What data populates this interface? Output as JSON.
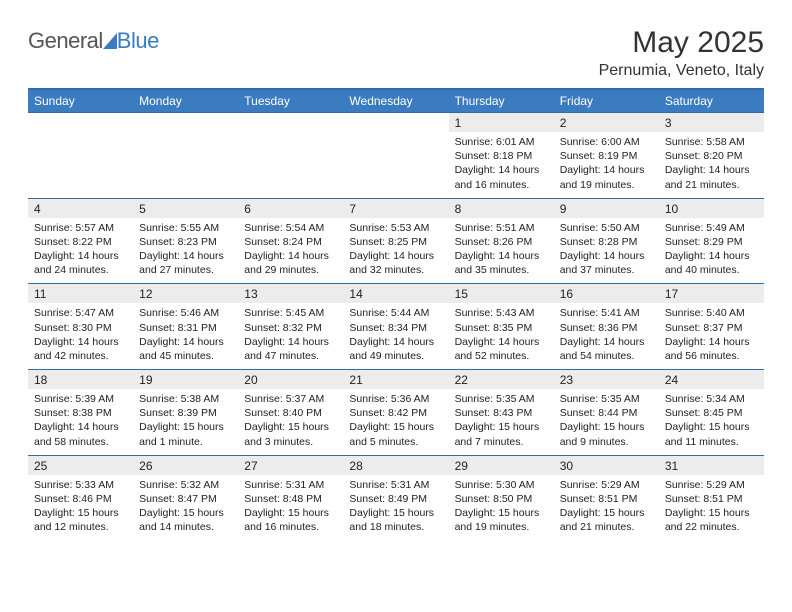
{
  "brand": {
    "part1": "General",
    "part2": "Blue"
  },
  "title": "May 2025",
  "location": "Pernumia, Veneto, Italy",
  "colors": {
    "header_bg": "#3b7bbf",
    "header_border": "#2f6da8",
    "daynum_bg": "#ececec",
    "text": "#222222",
    "logo_gray": "#555555",
    "logo_blue": "#3b7bbf",
    "page_bg": "#ffffff"
  },
  "typography": {
    "title_fontsize": 30,
    "location_fontsize": 16,
    "dayhead_fontsize": 12,
    "daynum_fontsize": 12,
    "detail_fontsize": 10.5,
    "font_family": "Arial"
  },
  "day_names": [
    "Sunday",
    "Monday",
    "Tuesday",
    "Wednesday",
    "Thursday",
    "Friday",
    "Saturday"
  ],
  "weeks": [
    [
      null,
      null,
      null,
      null,
      {
        "n": "1",
        "sr": "6:01 AM",
        "ss": "8:18 PM",
        "dl": "14 hours and 16 minutes."
      },
      {
        "n": "2",
        "sr": "6:00 AM",
        "ss": "8:19 PM",
        "dl": "14 hours and 19 minutes."
      },
      {
        "n": "3",
        "sr": "5:58 AM",
        "ss": "8:20 PM",
        "dl": "14 hours and 21 minutes."
      }
    ],
    [
      {
        "n": "4",
        "sr": "5:57 AM",
        "ss": "8:22 PM",
        "dl": "14 hours and 24 minutes."
      },
      {
        "n": "5",
        "sr": "5:55 AM",
        "ss": "8:23 PM",
        "dl": "14 hours and 27 minutes."
      },
      {
        "n": "6",
        "sr": "5:54 AM",
        "ss": "8:24 PM",
        "dl": "14 hours and 29 minutes."
      },
      {
        "n": "7",
        "sr": "5:53 AM",
        "ss": "8:25 PM",
        "dl": "14 hours and 32 minutes."
      },
      {
        "n": "8",
        "sr": "5:51 AM",
        "ss": "8:26 PM",
        "dl": "14 hours and 35 minutes."
      },
      {
        "n": "9",
        "sr": "5:50 AM",
        "ss": "8:28 PM",
        "dl": "14 hours and 37 minutes."
      },
      {
        "n": "10",
        "sr": "5:49 AM",
        "ss": "8:29 PM",
        "dl": "14 hours and 40 minutes."
      }
    ],
    [
      {
        "n": "11",
        "sr": "5:47 AM",
        "ss": "8:30 PM",
        "dl": "14 hours and 42 minutes."
      },
      {
        "n": "12",
        "sr": "5:46 AM",
        "ss": "8:31 PM",
        "dl": "14 hours and 45 minutes."
      },
      {
        "n": "13",
        "sr": "5:45 AM",
        "ss": "8:32 PM",
        "dl": "14 hours and 47 minutes."
      },
      {
        "n": "14",
        "sr": "5:44 AM",
        "ss": "8:34 PM",
        "dl": "14 hours and 49 minutes."
      },
      {
        "n": "15",
        "sr": "5:43 AM",
        "ss": "8:35 PM",
        "dl": "14 hours and 52 minutes."
      },
      {
        "n": "16",
        "sr": "5:41 AM",
        "ss": "8:36 PM",
        "dl": "14 hours and 54 minutes."
      },
      {
        "n": "17",
        "sr": "5:40 AM",
        "ss": "8:37 PM",
        "dl": "14 hours and 56 minutes."
      }
    ],
    [
      {
        "n": "18",
        "sr": "5:39 AM",
        "ss": "8:38 PM",
        "dl": "14 hours and 58 minutes."
      },
      {
        "n": "19",
        "sr": "5:38 AM",
        "ss": "8:39 PM",
        "dl": "15 hours and 1 minute."
      },
      {
        "n": "20",
        "sr": "5:37 AM",
        "ss": "8:40 PM",
        "dl": "15 hours and 3 minutes."
      },
      {
        "n": "21",
        "sr": "5:36 AM",
        "ss": "8:42 PM",
        "dl": "15 hours and 5 minutes."
      },
      {
        "n": "22",
        "sr": "5:35 AM",
        "ss": "8:43 PM",
        "dl": "15 hours and 7 minutes."
      },
      {
        "n": "23",
        "sr": "5:35 AM",
        "ss": "8:44 PM",
        "dl": "15 hours and 9 minutes."
      },
      {
        "n": "24",
        "sr": "5:34 AM",
        "ss": "8:45 PM",
        "dl": "15 hours and 11 minutes."
      }
    ],
    [
      {
        "n": "25",
        "sr": "5:33 AM",
        "ss": "8:46 PM",
        "dl": "15 hours and 12 minutes."
      },
      {
        "n": "26",
        "sr": "5:32 AM",
        "ss": "8:47 PM",
        "dl": "15 hours and 14 minutes."
      },
      {
        "n": "27",
        "sr": "5:31 AM",
        "ss": "8:48 PM",
        "dl": "15 hours and 16 minutes."
      },
      {
        "n": "28",
        "sr": "5:31 AM",
        "ss": "8:49 PM",
        "dl": "15 hours and 18 minutes."
      },
      {
        "n": "29",
        "sr": "5:30 AM",
        "ss": "8:50 PM",
        "dl": "15 hours and 19 minutes."
      },
      {
        "n": "30",
        "sr": "5:29 AM",
        "ss": "8:51 PM",
        "dl": "15 hours and 21 minutes."
      },
      {
        "n": "31",
        "sr": "5:29 AM",
        "ss": "8:51 PM",
        "dl": "15 hours and 22 minutes."
      }
    ]
  ],
  "labels": {
    "sunrise": "Sunrise:",
    "sunset": "Sunset:",
    "daylight": "Daylight:"
  }
}
